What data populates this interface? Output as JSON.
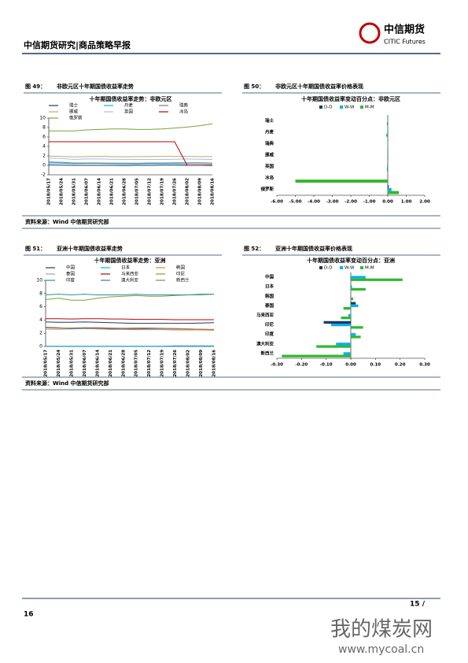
{
  "header": {
    "title": "中信期货研究|商品策略早报",
    "logo_cn": "中信期货",
    "logo_en": "CITIC Futures"
  },
  "figures": [
    {
      "label": "图 49：",
      "caption": "非欧元区十年期国债收益率走势",
      "source": "资料来源：Wind  中信期货研究部"
    },
    {
      "label": "图 50：",
      "caption": "非欧元区十年期国债收益率价格表现"
    },
    {
      "label": "图 51：",
      "caption": "亚洲十年期国债收益率走势",
      "source": "资料来源：Wind  中信期货研究部"
    },
    {
      "label": "图 52：",
      "caption": "亚洲十年期国债收益率价格表现"
    }
  ],
  "chart_data": [
    {
      "type": "line",
      "title": "十年期国债收益率走势：非欧元区",
      "grid": false,
      "categories": [
        "2018/05/17",
        "2018/05/24",
        "2018/05/31",
        "2018/06/07",
        "2018/06/14",
        "2018/06/21",
        "2018/06/28",
        "2018/07/05",
        "2018/07/12",
        "2018/07/19",
        "2018/07/26",
        "2018/08/02",
        "2018/08/09",
        "2018/08/16"
      ],
      "ylim": [
        -2,
        10
      ],
      "yticks": [
        -2,
        0,
        2,
        4,
        6,
        8,
        10
      ],
      "series": [
        {
          "name": "瑞士",
          "color": "#1f3864",
          "values": [
            0.1,
            0.05,
            0,
            0,
            0,
            0,
            -0.05,
            0,
            0,
            0.05,
            0.05,
            0,
            0,
            -0.05
          ]
        },
        {
          "name": "丹麦",
          "color": "#00b0f0",
          "values": [
            0.5,
            0.45,
            0.35,
            0.4,
            0.4,
            0.35,
            0.3,
            0.3,
            0.35,
            0.35,
            0.35,
            0.3,
            0.3,
            0.25
          ]
        },
        {
          "name": "瑞典",
          "color": "#7f7f7f",
          "values": [
            0.7,
            0.65,
            0.5,
            0.5,
            0.5,
            0.45,
            0.45,
            0.45,
            0.5,
            0.5,
            0.55,
            0.55,
            0.55,
            0.5
          ]
        },
        {
          "name": "挪威",
          "color": "#c9a36b",
          "values": [
            1.95,
            1.9,
            1.8,
            1.85,
            1.9,
            1.85,
            1.8,
            1.85,
            1.85,
            1.9,
            1.9,
            1.9,
            1.85,
            1.85
          ]
        },
        {
          "name": "英国",
          "color": "#9dc3e6",
          "values": [
            1.5,
            1.45,
            1.25,
            1.35,
            1.35,
            1.3,
            1.25,
            1.25,
            1.25,
            1.25,
            1.3,
            1.35,
            1.3,
            1.25
          ]
        },
        {
          "name": "冰岛",
          "color": "#c00000",
          "values": [
            5,
            5,
            5,
            5,
            5,
            5,
            5,
            5,
            5,
            5,
            5,
            0,
            0,
            0
          ]
        },
        {
          "name": "俄罗斯",
          "color": "#77a33b",
          "values": [
            7.3,
            7.3,
            7.3,
            7.5,
            7.6,
            7.7,
            7.7,
            7.6,
            7.6,
            7.7,
            7.9,
            8.1,
            8.4,
            8.8
          ]
        }
      ]
    },
    {
      "type": "hbar",
      "title": "十年期国债收益率变动百分点：非欧元区",
      "categories": [
        "瑞士",
        "丹麦",
        "瑞典",
        "挪威",
        "英国",
        "冰岛",
        "俄罗斯"
      ],
      "xlim": [
        -6,
        2
      ],
      "xticks": [
        {
          "value": -6,
          "label": "-6.00"
        },
        {
          "value": -5,
          "label": "-5.00"
        },
        {
          "value": -4,
          "label": "-4.00"
        },
        {
          "value": -3,
          "label": "-3.00"
        },
        {
          "value": -2,
          "label": "-2.00"
        },
        {
          "value": -1,
          "label": "-1.00"
        },
        {
          "value": 0,
          "label": "0.00"
        },
        {
          "value": 1,
          "label": "1.00"
        },
        {
          "value": 2,
          "label": "2.00"
        }
      ],
      "series": [
        {
          "name": "D-D",
          "color": "#1f3864",
          "values": [
            0,
            0,
            0,
            0,
            0,
            0,
            0.05
          ]
        },
        {
          "name": "W-W",
          "color": "#00b0f0",
          "values": [
            -0.02,
            -0.03,
            -0.02,
            -0.03,
            -0.04,
            0,
            0.2
          ]
        },
        {
          "name": "M-M",
          "color": "#2eb82e",
          "values": [
            -0.05,
            -0.08,
            0.02,
            0.03,
            -0.05,
            -5,
            0.6
          ]
        }
      ]
    },
    {
      "type": "line",
      "title": "十年期国债收益率走势：亚洲",
      "grid": false,
      "categories": [
        "2018/05/17",
        "2018/05/24",
        "2018/05/31",
        "2018/06/07",
        "2018/06/14",
        "2018/06/21",
        "2018/06/28",
        "2018/07/05",
        "2018/07/12",
        "2018/07/19",
        "2018/07/26",
        "2018/08/02",
        "2018/08/09",
        "2018/08/16"
      ],
      "ylim": [
        0,
        10
      ],
      "yticks": [
        0,
        2,
        4,
        6,
        8,
        10
      ],
      "series": [
        {
          "name": "中国",
          "color": "#1f3864",
          "values": [
            3.7,
            3.65,
            3.65,
            3.7,
            3.65,
            3.6,
            3.55,
            3.5,
            3.5,
            3.5,
            3.5,
            3.5,
            3.55,
            3.6
          ]
        },
        {
          "name": "日本",
          "color": "#00b0f0",
          "values": [
            0.05,
            0.05,
            0.05,
            0.05,
            0.05,
            0.05,
            0.05,
            0.05,
            0.05,
            0.05,
            0.1,
            0.1,
            0.1,
            0.1
          ]
        },
        {
          "name": "韩国",
          "color": "#ed7d31",
          "values": [
            2.8,
            2.75,
            2.7,
            2.7,
            2.65,
            2.6,
            2.6,
            2.55,
            2.55,
            2.55,
            2.5,
            2.5,
            2.5,
            2.45
          ]
        },
        {
          "name": "泰国",
          "color": "#a5a5a5",
          "values": [
            2.6,
            2.6,
            2.65,
            2.7,
            2.7,
            2.75,
            2.7,
            2.65,
            2.6,
            2.6,
            2.6,
            2.6,
            2.6,
            2.6
          ]
        },
        {
          "name": "马来西亚",
          "color": "#c00000",
          "values": [
            4.2,
            4.2,
            4.15,
            4.2,
            4.2,
            4.15,
            4.15,
            4.1,
            4.1,
            4.1,
            4.05,
            4.05,
            4.05,
            4.05
          ]
        },
        {
          "name": "印尼",
          "color": "#77a33b",
          "values": [
            7.1,
            7.3,
            7.0,
            7.0,
            7.3,
            7.5,
            7.6,
            7.7,
            7.6,
            7.6,
            7.7,
            7.8,
            7.8,
            7.9
          ]
        },
        {
          "name": "印度",
          "color": "#2e8b9a",
          "values": [
            7.8,
            7.9,
            7.8,
            7.9,
            7.8,
            7.8,
            7.8,
            7.9,
            7.8,
            7.8,
            7.8,
            7.8,
            7.9,
            7.9
          ]
        },
        {
          "name": "澳大利亚",
          "color": "#4a6fa5",
          "values": [
            2.9,
            2.85,
            2.7,
            2.75,
            2.75,
            2.65,
            2.65,
            2.65,
            2.7,
            2.7,
            2.7,
            2.65,
            2.6,
            2.55
          ]
        },
        {
          "name": "新西兰",
          "color": "#a67c52",
          "values": [
            2.85,
            2.8,
            2.8,
            2.85,
            2.85,
            2.8,
            2.75,
            2.8,
            2.8,
            2.75,
            2.7,
            2.65,
            2.6,
            2.55
          ]
        }
      ]
    },
    {
      "type": "hbar",
      "title": "十年期国债收益率变动百分点：亚洲",
      "categories": [
        "中国",
        "日本",
        "韩国",
        "泰国",
        "马来西亚",
        "印尼",
        "印度",
        "澳大利亚",
        "新西兰"
      ],
      "xlim": [
        -0.3,
        0.3
      ],
      "xticks": [
        {
          "value": -0.3,
          "label": "-0.30"
        },
        {
          "value": -0.2,
          "label": "-0.20"
        },
        {
          "value": -0.1,
          "label": "-0.10"
        },
        {
          "value": 0,
          "label": "0.00"
        },
        {
          "value": 0.1,
          "label": "0.10"
        },
        {
          "value": 0.2,
          "label": "0.20"
        },
        {
          "value": 0.3,
          "label": "0.30"
        }
      ],
      "series": [
        {
          "name": "D-D",
          "color": "#1f3864",
          "values": [
            0,
            0,
            0,
            0.02,
            0,
            -0.11,
            0,
            0,
            0
          ]
        },
        {
          "name": "W-W",
          "color": "#00b0f0",
          "values": [
            0.06,
            0.005,
            0,
            0.03,
            -0.01,
            -0.08,
            0.02,
            -0.06,
            -0.03
          ]
        },
        {
          "name": "M-M",
          "color": "#2eb82e",
          "values": [
            0.21,
            0.06,
            0.01,
            -0.03,
            -0.04,
            0.05,
            0.04,
            -0.14,
            -0.28
          ]
        }
      ]
    }
  ],
  "page_number": "16",
  "page_of": "15 /",
  "watermark": {
    "text": "我的煤炭网",
    "url": "www.mycoal.cn"
  }
}
